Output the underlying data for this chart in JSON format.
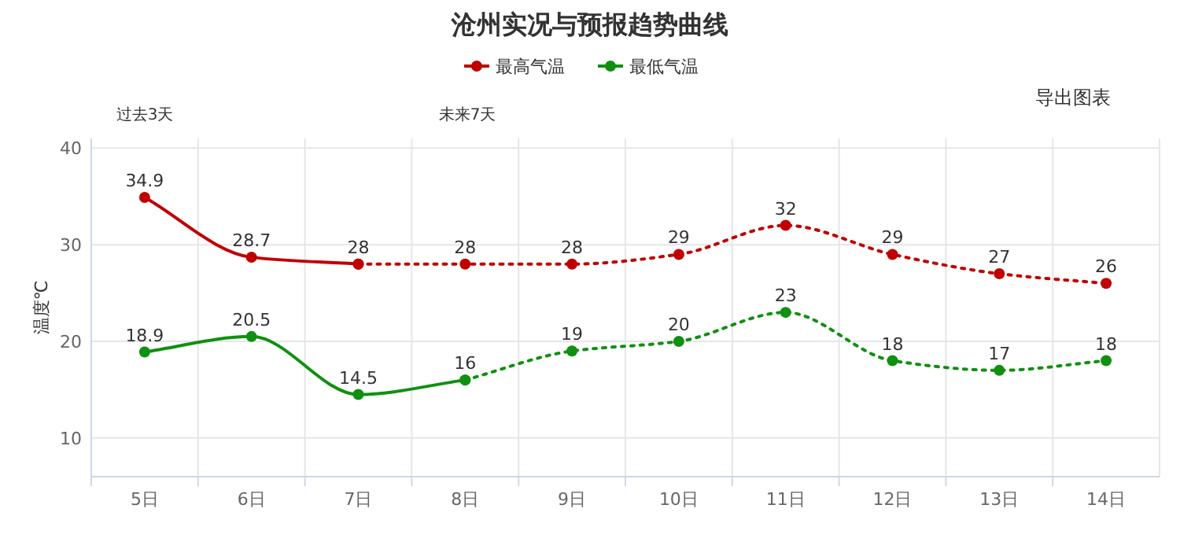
{
  "chart_data": {
    "type": "line",
    "title": "沧州实况与预报趋势曲线",
    "ylabel": "温度℃",
    "categories": [
      "5日",
      "6日",
      "7日",
      "8日",
      "9日",
      "10日",
      "11日",
      "12日",
      "13日",
      "14日"
    ],
    "series": [
      {
        "name": "最高气温",
        "color": "#c00000",
        "line_style": "solid",
        "values": [
          34.9,
          28.7,
          28,
          null,
          null,
          null,
          null,
          null,
          null,
          null
        ]
      },
      {
        "color": "#c00000",
        "line_style": "dotted",
        "values": [
          null,
          null,
          28,
          28,
          28,
          29,
          32,
          29,
          27,
          26
        ],
        "value_labels": [
          null,
          null,
          null,
          "28",
          "28",
          "29",
          "32",
          "29",
          "27",
          "26"
        ]
      },
      {
        "name": "最低气温",
        "color": "#109010",
        "line_style": "solid",
        "values": [
          18.9,
          20.5,
          14.5,
          16,
          null,
          null,
          null,
          null,
          null,
          null
        ]
      },
      {
        "color": "#109010",
        "line_style": "dotted",
        "values": [
          null,
          null,
          null,
          16,
          19,
          20,
          23,
          18,
          17,
          18
        ],
        "value_labels": [
          null,
          null,
          null,
          null,
          "19",
          "20",
          "23",
          "18",
          "17",
          "18"
        ]
      }
    ],
    "ylim": [
      6,
      41
    ],
    "yticks": [
      10,
      20,
      30,
      40
    ],
    "grid": true,
    "legend": "top",
    "marker": "circle",
    "data_labels": true,
    "annotations": [
      "过去3天",
      "未来7天",
      "导出图表"
    ]
  }
}
